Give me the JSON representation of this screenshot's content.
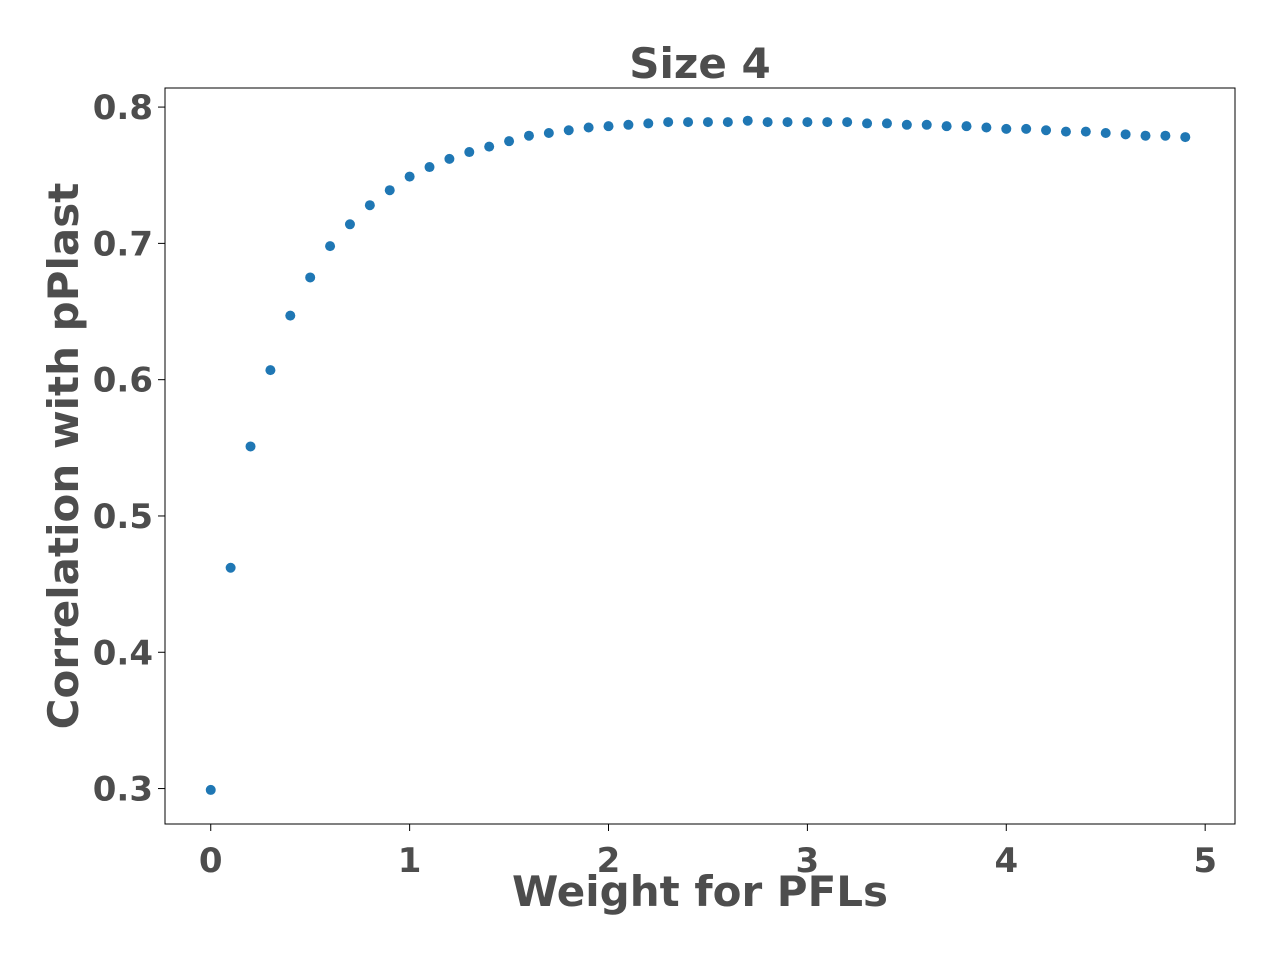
{
  "chart_data": {
    "type": "scatter",
    "title": "Size 4",
    "xlabel": "Weight for PFLs",
    "ylabel": "Correlation with pPlast",
    "xlim": [
      -0.23,
      5.15
    ],
    "ylim": [
      0.274,
      0.814
    ],
    "xticks": [
      0,
      1,
      2,
      3,
      4,
      5
    ],
    "yticks": [
      0.3,
      0.4,
      0.5,
      0.6,
      0.7,
      0.8
    ],
    "xtick_labels": [
      "0",
      "1",
      "2",
      "3",
      "4",
      "5"
    ],
    "ytick_labels": [
      "0.3",
      "0.4",
      "0.5",
      "0.6",
      "0.7",
      "0.8"
    ],
    "grid": false,
    "legend": "none",
    "colors": {
      "marker": "#1f77b4",
      "text": "#4d4d4d",
      "axes": "#000000"
    },
    "series": [
      {
        "x": [
          0.0,
          0.1,
          0.2,
          0.3,
          0.4,
          0.5,
          0.6,
          0.7,
          0.8,
          0.9,
          1.0,
          1.1,
          1.2,
          1.3,
          1.4,
          1.5,
          1.6,
          1.7,
          1.8,
          1.9,
          2.0,
          2.1,
          2.2,
          2.3,
          2.4,
          2.5,
          2.6,
          2.7,
          2.8,
          2.9,
          3.0,
          3.1,
          3.2,
          3.3,
          3.4,
          3.5,
          3.6,
          3.7,
          3.8,
          3.9,
          4.0,
          4.1,
          4.2,
          4.3,
          4.4,
          4.5,
          4.6,
          4.7,
          4.8,
          4.9
        ],
        "y": [
          0.299,
          0.462,
          0.551,
          0.607,
          0.647,
          0.675,
          0.698,
          0.714,
          0.728,
          0.739,
          0.749,
          0.756,
          0.762,
          0.767,
          0.771,
          0.775,
          0.779,
          0.781,
          0.783,
          0.785,
          0.786,
          0.787,
          0.788,
          0.789,
          0.789,
          0.789,
          0.789,
          0.79,
          0.789,
          0.789,
          0.789,
          0.789,
          0.789,
          0.788,
          0.788,
          0.787,
          0.787,
          0.786,
          0.786,
          0.785,
          0.784,
          0.784,
          0.783,
          0.782,
          0.782,
          0.781,
          0.78,
          0.779,
          0.779,
          0.778
        ]
      }
    ]
  }
}
